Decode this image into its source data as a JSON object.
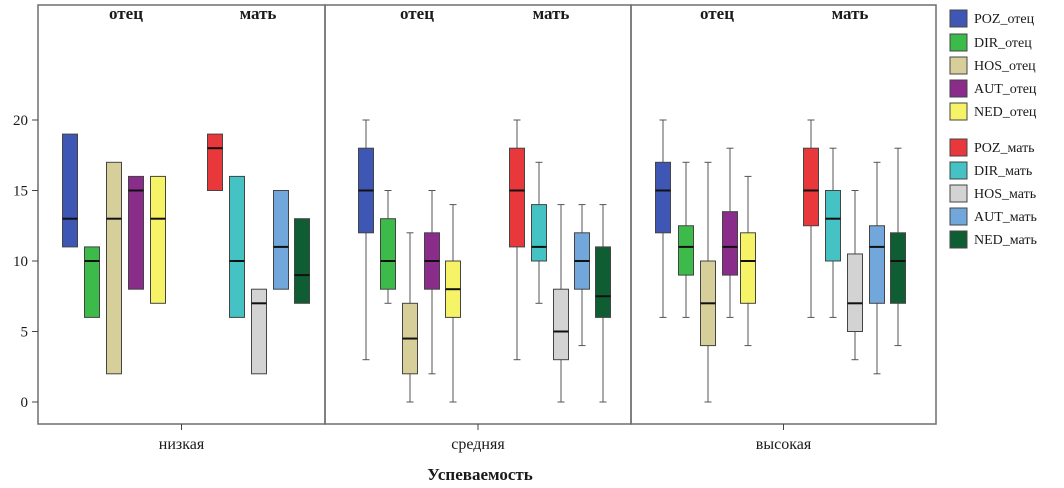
{
  "chart_data": {
    "type": "box",
    "xlabel": "Успеваемость",
    "panels": [
      "низкая",
      "средняя",
      "высокая"
    ],
    "groups": [
      "отец",
      "мать"
    ],
    "y_ticks": [
      0,
      5,
      10,
      15,
      20
    ],
    "ylim": [
      -1,
      21
    ],
    "grid": false,
    "legend_position": "right",
    "series": [
      {
        "name": "POZ_отец",
        "group": "отец",
        "color": "#3f57b4",
        "boxes": [
          {
            "min": 11,
            "q1": 11,
            "median": 13,
            "q3": 19,
            "max": 19
          },
          {
            "min": 3,
            "q1": 12,
            "median": 15,
            "q3": 18,
            "max": 20
          },
          {
            "min": 6,
            "q1": 12,
            "median": 15,
            "q3": 17,
            "max": 20
          }
        ]
      },
      {
        "name": "DIR_отец",
        "group": "отец",
        "color": "#3dbb4a",
        "boxes": [
          {
            "min": 6,
            "q1": 6,
            "median": 10,
            "q3": 11,
            "max": 11
          },
          {
            "min": 7,
            "q1": 8,
            "median": 10,
            "q3": 13,
            "max": 15
          },
          {
            "min": 6,
            "q1": 9,
            "median": 11,
            "q3": 12.5,
            "max": 17
          }
        ]
      },
      {
        "name": "HOS_отец",
        "group": "отец",
        "color": "#d7cf9a",
        "boxes": [
          {
            "min": 2,
            "q1": 2,
            "median": 13,
            "q3": 17,
            "max": 17
          },
          {
            "min": 0,
            "q1": 2,
            "median": 4.5,
            "q3": 7,
            "max": 12
          },
          {
            "min": 0,
            "q1": 4,
            "median": 7,
            "q3": 10,
            "max": 17
          }
        ]
      },
      {
        "name": "AUT_отец",
        "group": "отец",
        "color": "#8a2c8a",
        "boxes": [
          {
            "min": 8,
            "q1": 8,
            "median": 15,
            "q3": 16,
            "max": 16
          },
          {
            "min": 2,
            "q1": 8,
            "median": 10,
            "q3": 12,
            "max": 15
          },
          {
            "min": 6,
            "q1": 9,
            "median": 11,
            "q3": 13.5,
            "max": 18
          }
        ]
      },
      {
        "name": "NED_отец",
        "group": "отец",
        "color": "#f6f466",
        "boxes": [
          {
            "min": 7,
            "q1": 7,
            "median": 13,
            "q3": 16,
            "max": 16
          },
          {
            "min": 0,
            "q1": 6,
            "median": 8,
            "q3": 10,
            "max": 14
          },
          {
            "min": 4,
            "q1": 7,
            "median": 10,
            "q3": 12,
            "max": 16
          }
        ]
      },
      {
        "name": "POZ_мать",
        "group": "мать",
        "color": "#e8383b",
        "boxes": [
          {
            "min": 15,
            "q1": 15,
            "median": 18,
            "q3": 19,
            "max": 19
          },
          {
            "min": 3,
            "q1": 11,
            "median": 15,
            "q3": 18,
            "max": 20
          },
          {
            "min": 6,
            "q1": 12.5,
            "median": 15,
            "q3": 18,
            "max": 20
          }
        ]
      },
      {
        "name": "DIR_мать",
        "group": "мать",
        "color": "#44c2c4",
        "boxes": [
          {
            "min": 6,
            "q1": 6,
            "median": 10,
            "q3": 16,
            "max": 16
          },
          {
            "min": 7,
            "q1": 10,
            "median": 11,
            "q3": 14,
            "max": 17
          },
          {
            "min": 6,
            "q1": 10,
            "median": 13,
            "q3": 15,
            "max": 18
          }
        ]
      },
      {
        "name": "HOS_мать",
        "group": "мать",
        "color": "#d3d3d3",
        "boxes": [
          {
            "min": 2,
            "q1": 2,
            "median": 7,
            "q3": 8,
            "max": 8
          },
          {
            "min": 0,
            "q1": 3,
            "median": 5,
            "q3": 8,
            "max": 14
          },
          {
            "min": 3,
            "q1": 5,
            "median": 7,
            "q3": 10.5,
            "max": 15
          }
        ]
      },
      {
        "name": "AUT_мать",
        "group": "мать",
        "color": "#72a7dc",
        "boxes": [
          {
            "min": 8,
            "q1": 8,
            "median": 11,
            "q3": 15,
            "max": 15
          },
          {
            "min": 4,
            "q1": 8,
            "median": 10,
            "q3": 12,
            "max": 14
          },
          {
            "min": 2,
            "q1": 7,
            "median": 11,
            "q3": 12.5,
            "max": 17
          }
        ]
      },
      {
        "name": "NED_мать",
        "group": "мать",
        "color": "#0f5e33",
        "boxes": [
          {
            "min": 7,
            "q1": 7,
            "median": 9,
            "q3": 13,
            "max": 13
          },
          {
            "min": 0,
            "q1": 6,
            "median": 7.5,
            "q3": 11,
            "max": 14
          },
          {
            "min": 4,
            "q1": 7,
            "median": 10,
            "q3": 12,
            "max": 18
          }
        ]
      }
    ]
  }
}
